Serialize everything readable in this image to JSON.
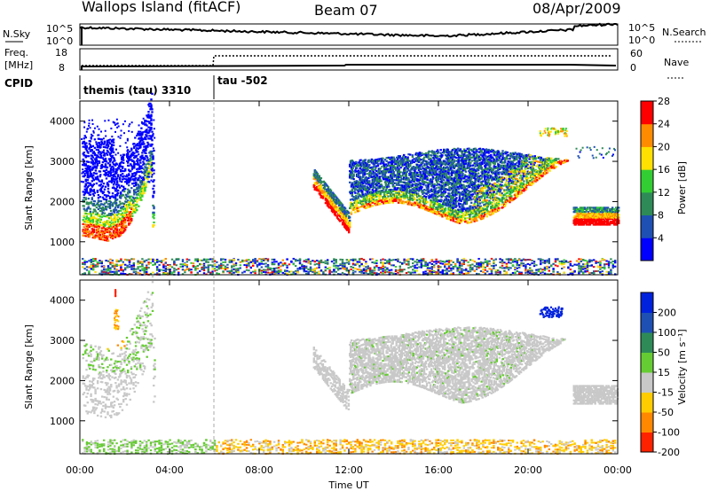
{
  "header": {
    "station": "Wallops Island (fitACF)",
    "beam": "Beam 07",
    "date": "08/Apr/2009"
  },
  "panels": {
    "nsky_label": "N.Sky",
    "nsky_ticks": [
      "10^5",
      "10^0"
    ],
    "nsearch_label": "N.Search",
    "nsearch_ticks": [
      "10^5",
      "10^0"
    ],
    "freq_label_line1": "Freq.",
    "freq_label_line2": "[MHz]",
    "freq_ticks": [
      "18",
      "8"
    ],
    "nave_label": "Nave",
    "nave_ticks": [
      "60",
      "0"
    ],
    "cpid_label": "CPID",
    "cpid_segments": [
      "themis (tau) 3310",
      "tau -502"
    ]
  },
  "chart_data": [
    {
      "type": "heatmap",
      "name": "power",
      "ylabel": "Slant Range [km]",
      "xlabel": "",
      "ylim": [
        180,
        4500
      ],
      "yticks": [
        1000,
        2000,
        3000,
        4000
      ],
      "xlim_hours": [
        0,
        24
      ],
      "colorbar_label": "Power [dB]",
      "colorbar_ticks": [
        "4",
        "8",
        "12",
        "16",
        "20",
        "24",
        "28"
      ],
      "colorbar_colors": [
        "#0000ff",
        "#1e50b4",
        "#2e8b57",
        "#32cd32",
        "#ffe000",
        "#ff8c00",
        "#ff0000"
      ]
    },
    {
      "type": "heatmap",
      "name": "velocity",
      "ylabel": "Slant Range [km]",
      "xlabel": "Time UT",
      "ylim": [
        180,
        4500
      ],
      "yticks": [
        1000,
        2000,
        3000,
        4000
      ],
      "xlim_hours": [
        0,
        24
      ],
      "xticks": [
        "00:00",
        "04:00",
        "08:00",
        "12:00",
        "16:00",
        "20:00",
        "00:00"
      ],
      "colorbar_label": "Velocity [m s⁻¹]",
      "colorbar_ticks": [
        "200",
        "100",
        "50",
        "15",
        "-15",
        "-50",
        "-100",
        "-200"
      ],
      "colorbar_colors": [
        "#0022dd",
        "#1e50b4",
        "#2e8b57",
        "#66cc33",
        "#c8c8c8",
        "#ffcc00",
        "#ff8800",
        "#ff2200"
      ]
    }
  ]
}
